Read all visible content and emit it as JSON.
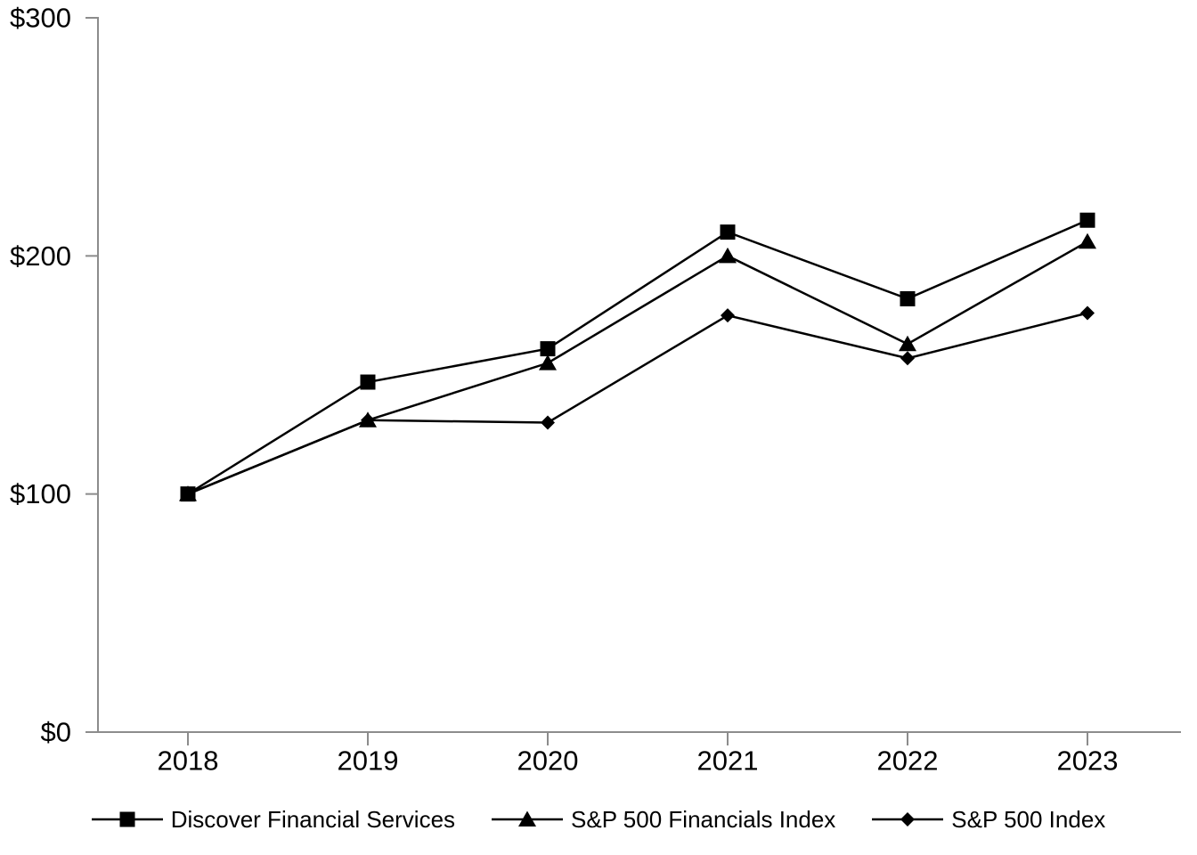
{
  "chart_data": {
    "type": "line",
    "title": "",
    "xlabel": "",
    "ylabel": "",
    "categories": [
      "2018",
      "2019",
      "2020",
      "2021",
      "2022",
      "2023"
    ],
    "series": [
      {
        "name": "Discover Financial Services",
        "marker": "square",
        "values": [
          100,
          147,
          161,
          210,
          182,
          215
        ]
      },
      {
        "name": "S&P 500 Financials Index",
        "marker": "triangle",
        "values": [
          100,
          131,
          155,
          200,
          163,
          206
        ]
      },
      {
        "name": "S&P 500 Index",
        "marker": "diamond",
        "values": [
          100,
          131,
          130,
          175,
          157,
          176
        ]
      }
    ],
    "ylim": [
      0,
      300
    ],
    "yticks": [
      0,
      100,
      200,
      300
    ],
    "ytick_labels": [
      "$0",
      "$100",
      "$200",
      "$300"
    ],
    "grid": false,
    "legend_position": "bottom",
    "colors": {
      "series": "#000000",
      "axis": "#8c8c8c",
      "text": "#000000",
      "background": "#ffffff"
    }
  }
}
